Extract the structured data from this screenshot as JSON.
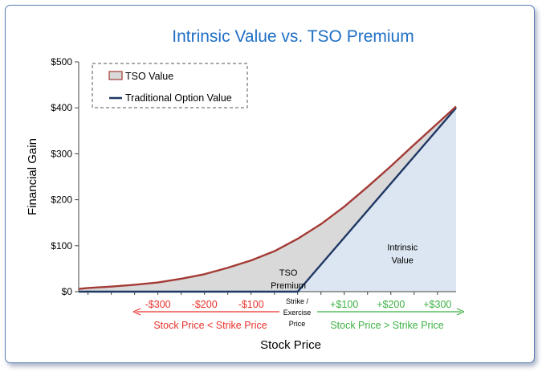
{
  "chart_data": {
    "type": "area",
    "title": "Intrinsic Value vs. TSO Premium",
    "xlabel": "Stock Price",
    "ylabel": "Financial Gain",
    "ylim": [
      0,
      500
    ],
    "xlim": [
      -470,
      340
    ],
    "y_ticks": [
      "$0",
      "$100",
      "$200",
      "$300",
      "$400",
      "$500"
    ],
    "y_tick_values": [
      0,
      100,
      200,
      300,
      400,
      500
    ],
    "x_ticks_below": [
      {
        "value": -300,
        "label": "-$300",
        "color": "#e8322b"
      },
      {
        "value": -200,
        "label": "-$200",
        "color": "#e8322b"
      },
      {
        "value": -100,
        "label": "-$100",
        "color": "#e8322b"
      },
      {
        "value": 100,
        "label": "+$100",
        "color": "#3cb043"
      },
      {
        "value": 200,
        "label": "+$200",
        "color": "#3cb043"
      },
      {
        "value": 300,
        "label": "+$300",
        "color": "#3cb043"
      }
    ],
    "strike_label": [
      "Strike /",
      "Exercise",
      "Price"
    ],
    "left_arrow_label": "Stock Price < Strike Price",
    "right_arrow_label": "Stock Price > Strike Price",
    "grid": false,
    "legend_position": "top-left",
    "series": [
      {
        "name": "TSO Value",
        "color": "#a33a35",
        "fill": "#d9d9d9",
        "x": [
          -470,
          -450,
          -400,
          -350,
          -300,
          -250,
          -200,
          -150,
          -100,
          -50,
          0,
          50,
          100,
          150,
          200,
          250,
          300,
          340
        ],
        "y": [
          6,
          8,
          11,
          15,
          20,
          28,
          38,
          52,
          68,
          88,
          115,
          147,
          185,
          228,
          273,
          320,
          366,
          403
        ]
      },
      {
        "name": "Traditional Option Value",
        "color": "#1f3864",
        "x": [
          -470,
          0,
          340
        ],
        "y": [
          0,
          0,
          400
        ]
      }
    ],
    "annotations": [
      {
        "text_lines": [
          "TSO",
          "Premium"
        ],
        "x": -20,
        "y": 35
      },
      {
        "text_lines": [
          "Intrinsic",
          "Value"
        ],
        "x": 225,
        "y": 90
      }
    ],
    "intrinsic_fill": "#dce6f2",
    "title_color": "#1f6fc5"
  }
}
